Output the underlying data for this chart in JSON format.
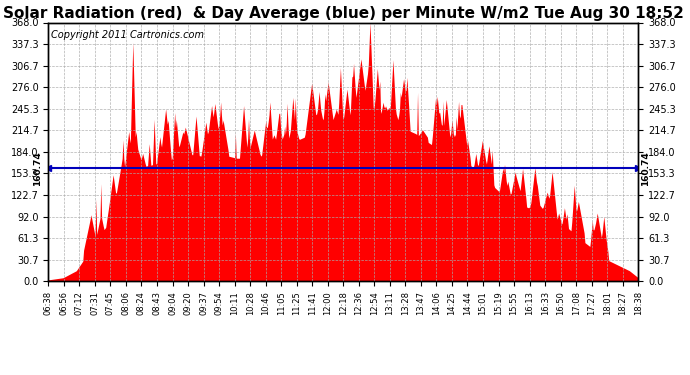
{
  "title": "Solar Radiation (red)  & Day Average (blue) per Minute W/m2 Tue Aug 30 18:52",
  "copyright_text": "Copyright 2011 Cartronics.com",
  "average_value": 160.74,
  "y_max": 368.0,
  "y_min": 0.0,
  "y_ticks": [
    0.0,
    30.7,
    61.3,
    92.0,
    122.7,
    153.3,
    184.0,
    214.7,
    245.3,
    276.0,
    306.7,
    337.3,
    368.0
  ],
  "fill_color": "#ff0000",
  "line_color": "#0000bb",
  "background_color": "#ffffff",
  "grid_color": "#aaaaaa",
  "title_fontsize": 11,
  "copyright_fontsize": 7,
  "x_labels": [
    "06:38",
    "06:56",
    "07:12",
    "07:31",
    "07:45",
    "08:06",
    "08:24",
    "08:43",
    "09:04",
    "09:20",
    "09:37",
    "09:54",
    "10:11",
    "10:28",
    "10:46",
    "11:05",
    "11:25",
    "11:41",
    "12:00",
    "12:18",
    "12:36",
    "12:54",
    "13:11",
    "13:28",
    "13:47",
    "14:06",
    "14:25",
    "14:44",
    "15:01",
    "15:19",
    "15:55",
    "16:13",
    "16:33",
    "16:50",
    "17:08",
    "17:27",
    "18:01",
    "18:27",
    "18:38"
  ]
}
